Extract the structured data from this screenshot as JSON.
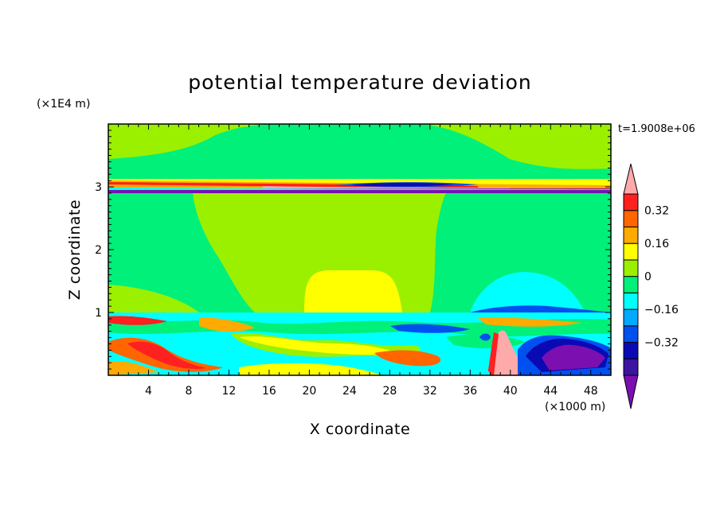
{
  "chart_data": {
    "type": "heatmap",
    "title": "potential temperature deviation",
    "time_label": "t=1.9008e+06",
    "xlabel": "X coordinate",
    "ylabel": "Z coordinate",
    "x_unit": "(×1000 m)",
    "y_unit": "(×1E4 m)",
    "xlim": [
      0,
      50
    ],
    "ylim": [
      0,
      4
    ],
    "x_ticks": [
      4,
      8,
      12,
      16,
      20,
      24,
      28,
      32,
      36,
      40,
      44,
      48
    ],
    "y_ticks": [
      1,
      2,
      3
    ],
    "colorbar": {
      "levels": [
        -0.48,
        -0.4,
        -0.32,
        -0.24,
        -0.16,
        -0.08,
        0,
        0.08,
        0.16,
        0.24,
        0.32,
        0.4,
        0.48
      ],
      "labels": [
        "0.32",
        "0.16",
        "0",
        "−0.16",
        "−0.32"
      ],
      "label_values": [
        0.32,
        0.16,
        0,
        -0.16,
        -0.32
      ],
      "colors": [
        "#7b0fb0",
        "#3c14a0",
        "#0a0ab4",
        "#0050f0",
        "#00aaff",
        "#00ffff",
        "#00f07a",
        "#9bf000",
        "#ffff00",
        "#ffaa00",
        "#ff6600",
        "#ff2020",
        "#ffaaaa"
      ]
    }
  }
}
